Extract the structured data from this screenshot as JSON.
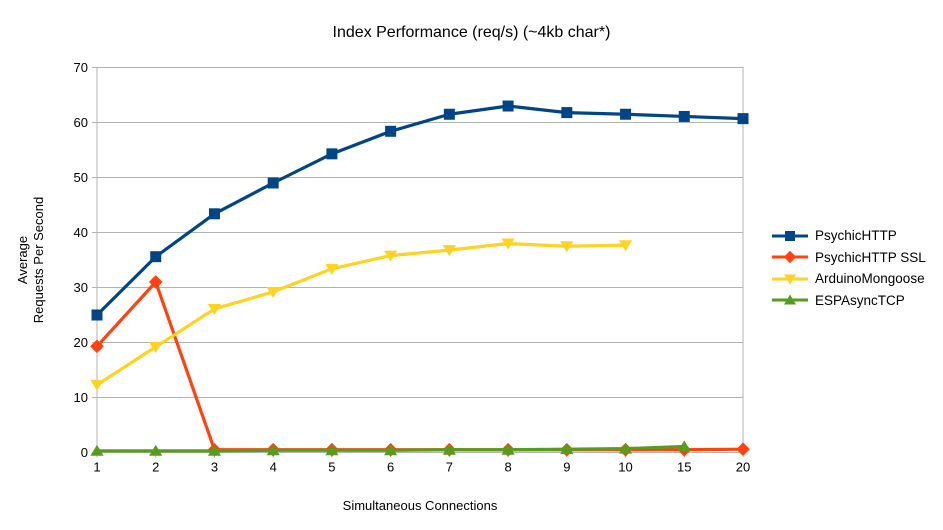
{
  "chart_data": {
    "type": "line",
    "title": "Index Performance (req/s) (~4kb char*)",
    "xlabel": "Simultaneous Connections",
    "ylabel_lines": [
      "Average",
      "Requests Per Second"
    ],
    "categories": [
      1,
      2,
      3,
      4,
      5,
      6,
      7,
      8,
      9,
      10,
      15,
      20
    ],
    "ylim": [
      0,
      70
    ],
    "ytick_step": 10,
    "grid": "horizontal",
    "gridline_color": "#b3b3b3",
    "legend_position": "right",
    "series": [
      {
        "name": "PsychicHTTP",
        "color": "#004586",
        "marker": "square",
        "values": [
          25,
          35.6,
          43.4,
          49,
          54.3,
          58.4,
          61.5,
          63,
          61.8,
          61.5,
          61.1,
          60.7
        ]
      },
      {
        "name": "PsychicHTTP SSL",
        "color": "#ff420e",
        "marker": "diamond",
        "values": [
          19.3,
          31,
          0.5,
          0.5,
          0.5,
          0.5,
          0.5,
          0.5,
          0.5,
          0.5,
          0.5,
          0.6
        ]
      },
      {
        "name": "ArduinoMongoose",
        "color": "#ffd320",
        "marker": "triangle-down",
        "values": [
          12.3,
          19.2,
          26.1,
          29.2,
          33.4,
          35.8,
          36.8,
          38,
          37.5,
          37.7,
          null,
          null
        ]
      },
      {
        "name": "ESPAsyncTCP",
        "color": "#579d1c",
        "marker": "triangle-up",
        "values": [
          0.3,
          0.3,
          0.3,
          0.4,
          0.4,
          0.4,
          0.5,
          0.5,
          0.6,
          0.7,
          1.1,
          null
        ]
      }
    ]
  }
}
